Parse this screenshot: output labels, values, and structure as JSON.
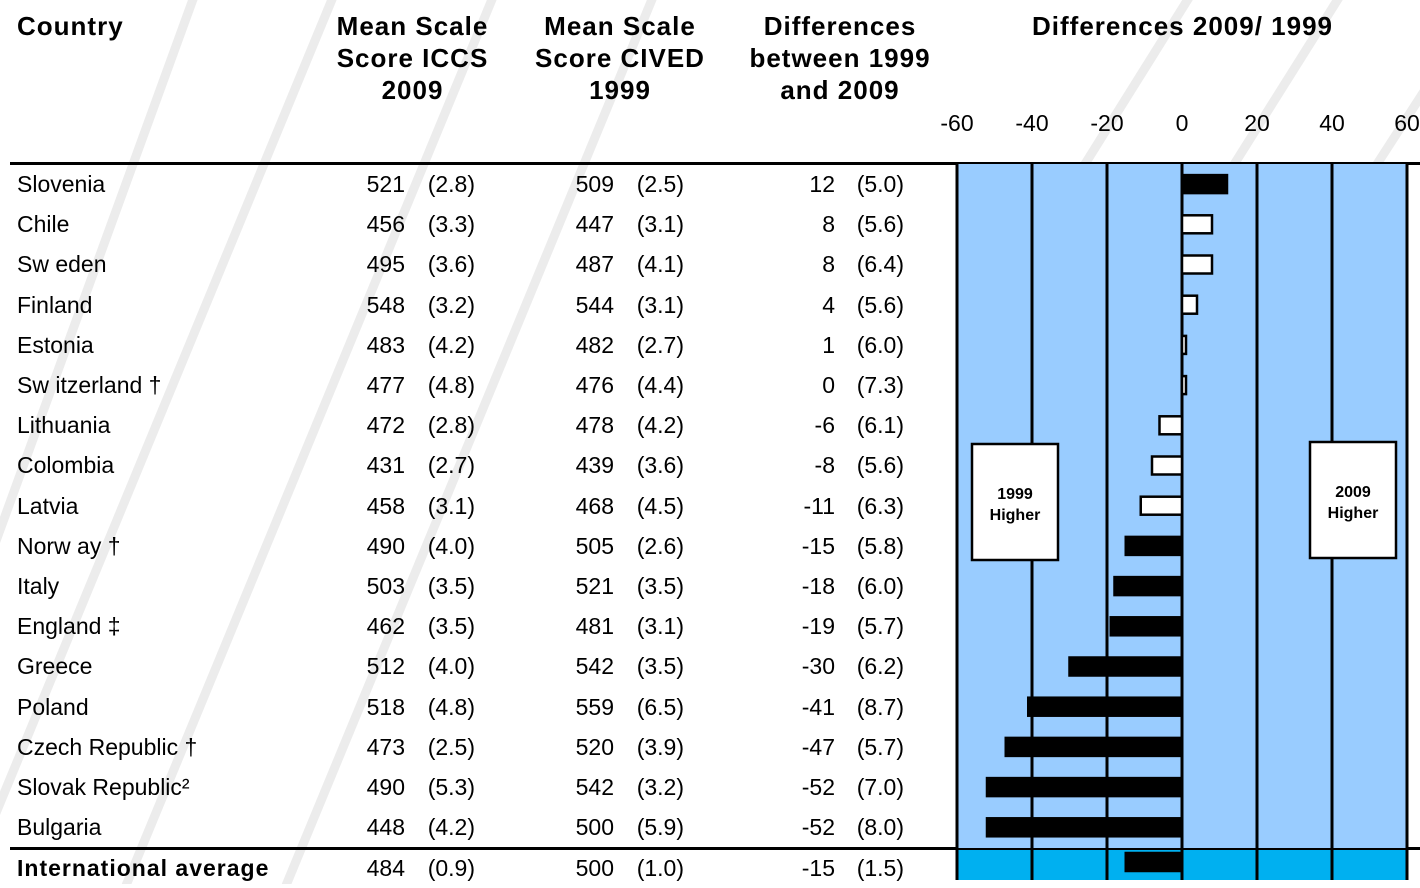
{
  "headers": {
    "country": "Country",
    "iccs": [
      "Mean Scale",
      "Score ICCS",
      "2009"
    ],
    "cived": [
      "Mean Scale",
      "Score CIVED",
      "1999"
    ],
    "diff": [
      "Differences",
      "between 1999",
      "and 2009"
    ],
    "chart": "Differences 2009/ 1999"
  },
  "ticks": [
    "-60",
    "-40",
    "-20",
    "0",
    "20",
    "40",
    "60"
  ],
  "rows": [
    {
      "country": "Slovenia",
      "iccs": "521",
      "iccs_se": "(2.8)",
      "cived": "509",
      "cived_se": "(2.5)",
      "diff": "12",
      "diff_se": "(5.0)"
    },
    {
      "country": "Chile",
      "iccs": "456",
      "iccs_se": "(3.3)",
      "cived": "447",
      "cived_se": "(3.1)",
      "diff": "8",
      "diff_se": "(5.6)"
    },
    {
      "country": "Sw eden",
      "iccs": "495",
      "iccs_se": "(3.6)",
      "cived": "487",
      "cived_se": "(4.1)",
      "diff": "8",
      "diff_se": "(6.4)"
    },
    {
      "country": "Finland",
      "iccs": "548",
      "iccs_se": "(3.2)",
      "cived": "544",
      "cived_se": "(3.1)",
      "diff": "4",
      "diff_se": "(5.6)"
    },
    {
      "country": "Estonia",
      "iccs": "483",
      "iccs_se": "(4.2)",
      "cived": "482",
      "cived_se": "(2.7)",
      "diff": "1",
      "diff_se": "(6.0)"
    },
    {
      "country": "Sw itzerland †",
      "iccs": "477",
      "iccs_se": "(4.8)",
      "cived": "476",
      "cived_se": "(4.4)",
      "diff": "0",
      "diff_se": "(7.3)"
    },
    {
      "country": "Lithuania",
      "iccs": "472",
      "iccs_se": "(2.8)",
      "cived": "478",
      "cived_se": "(4.2)",
      "diff": "-6",
      "diff_se": "(6.1)"
    },
    {
      "country": "Colombia",
      "iccs": "431",
      "iccs_se": "(2.7)",
      "cived": "439",
      "cived_se": "(3.6)",
      "diff": "-8",
      "diff_se": "(5.6)"
    },
    {
      "country": "Latvia",
      "iccs": "458",
      "iccs_se": "(3.1)",
      "cived": "468",
      "cived_se": "(4.5)",
      "diff": "-11",
      "diff_se": "(6.3)"
    },
    {
      "country": "Norw ay †",
      "iccs": "490",
      "iccs_se": "(4.0)",
      "cived": "505",
      "cived_se": "(2.6)",
      "diff": "-15",
      "diff_se": "(5.8)"
    },
    {
      "country": "Italy",
      "iccs": "503",
      "iccs_se": "(3.5)",
      "cived": "521",
      "cived_se": "(3.5)",
      "diff": "-18",
      "diff_se": "(6.0)"
    },
    {
      "country": "England ‡",
      "iccs": "462",
      "iccs_se": "(3.5)",
      "cived": "481",
      "cived_se": "(3.1)",
      "diff": "-19",
      "diff_se": "(5.7)"
    },
    {
      "country": "Greece",
      "iccs": "512",
      "iccs_se": "(4.0)",
      "cived": "542",
      "cived_se": "(3.5)",
      "diff": "-30",
      "diff_se": "(6.2)"
    },
    {
      "country": "Poland",
      "iccs": "518",
      "iccs_se": "(4.8)",
      "cived": "559",
      "cived_se": "(6.5)",
      "diff": "-41",
      "diff_se": "(8.7)"
    },
    {
      "country": "Czech Republic †",
      "iccs": "473",
      "iccs_se": "(2.5)",
      "cived": "520",
      "cived_se": "(3.9)",
      "diff": "-47",
      "diff_se": "(5.7)"
    },
    {
      "country": "Slovak Republic²",
      "iccs": "490",
      "iccs_se": "(5.3)",
      "cived": "542",
      "cived_se": "(3.2)",
      "diff": "-52",
      "diff_se": "(7.0)"
    },
    {
      "country": "Bulgaria",
      "iccs": "448",
      "iccs_se": "(4.2)",
      "cived": "500",
      "cived_se": "(5.9)",
      "diff": "-52",
      "diff_se": "(8.0)"
    }
  ],
  "average": {
    "country": "International average",
    "iccs": "484",
    "iccs_se": "(0.9)",
    "cived": "500",
    "cived_se": "(1.0)",
    "diff": "-15",
    "diff_se": "(1.5)"
  },
  "labels": {
    "left": [
      "1999",
      "Higher"
    ],
    "right": [
      "2009",
      "Higher"
    ]
  },
  "colors": {
    "plot_bg": "#99ccff",
    "avg_bg": "#00b0f0",
    "significant": "#000000",
    "not_significant": "#ffffff"
  },
  "chart_data": {
    "type": "bar",
    "orientation": "horizontal",
    "title": "Differences 2009/ 1999",
    "categories": [
      "Slovenia",
      "Chile",
      "Sweden",
      "Finland",
      "Estonia",
      "Switzerland †",
      "Lithuania",
      "Colombia",
      "Latvia",
      "Norway †",
      "Italy",
      "England ‡",
      "Greece",
      "Poland",
      "Czech Republic †",
      "Slovak Republic²",
      "Bulgaria",
      "International average"
    ],
    "values": [
      12,
      8,
      8,
      4,
      1,
      0,
      -6,
      -8,
      -11,
      -15,
      -18,
      -19,
      -30,
      -41,
      -47,
      -52,
      -52,
      -15
    ],
    "significant": [
      true,
      false,
      false,
      false,
      false,
      false,
      false,
      false,
      false,
      true,
      true,
      true,
      true,
      true,
      true,
      true,
      true,
      true
    ],
    "xlim": [
      -60,
      60
    ],
    "xticks": [
      -60,
      -40,
      -20,
      0,
      20,
      40,
      60
    ],
    "grid": true
  }
}
